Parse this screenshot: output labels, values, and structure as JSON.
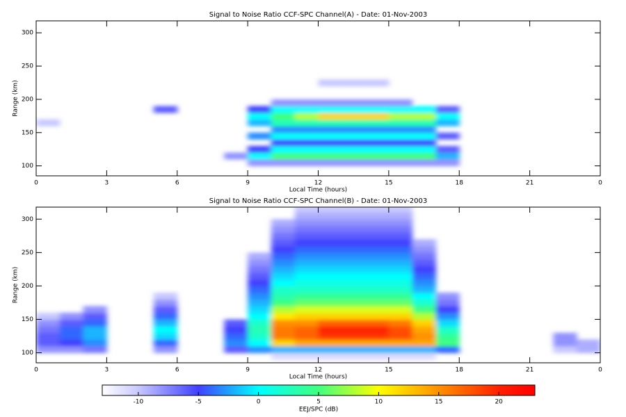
{
  "chart_data": [
    {
      "type": "heatmap",
      "title": "Signal to Noise Ratio CCF-SPC Channel(A) - Date: 01-Nov-2003",
      "xlabel": "Local Time (hours)",
      "ylabel": "Range (km)",
      "xlim": [
        0,
        24
      ],
      "ylim": [
        85,
        318
      ],
      "xticks": [
        0,
        3,
        6,
        9,
        12,
        15,
        18,
        21,
        {
          "value": 24,
          "label": "0"
        }
      ],
      "yticks": [
        100,
        150,
        200,
        250,
        300
      ],
      "xbins": [
        0,
        1,
        2,
        3,
        4,
        5,
        6,
        7,
        8,
        9,
        10,
        11,
        12,
        13,
        14,
        15,
        16,
        17,
        18,
        19,
        20,
        21,
        22,
        23,
        24
      ],
      "ybins": [
        90,
        100,
        110,
        120,
        130,
        140,
        150,
        160,
        170,
        180,
        190,
        200,
        210,
        220,
        230,
        240
      ],
      "z": [
        [
          null,
          null,
          null,
          null,
          null,
          null,
          null,
          null,
          null,
          null,
          null,
          null,
          null,
          null,
          null,
          null,
          null,
          null,
          null,
          null,
          null,
          null,
          null,
          null
        ],
        [
          null,
          null,
          null,
          null,
          null,
          null,
          null,
          null,
          null,
          -8,
          -8,
          -8,
          -8,
          -8,
          -8,
          -8,
          -8,
          -8,
          null,
          null,
          null,
          null,
          null,
          null
        ],
        [
          null,
          null,
          null,
          null,
          null,
          null,
          null,
          null,
          -8,
          0,
          5,
          5,
          5,
          5,
          5,
          5,
          5,
          -2,
          null,
          null,
          null,
          null,
          null,
          null
        ],
        [
          null,
          null,
          null,
          null,
          null,
          null,
          null,
          null,
          null,
          -5,
          0,
          0,
          0,
          0,
          0,
          0,
          0,
          -6,
          null,
          null,
          null,
          null,
          null,
          null
        ],
        [
          null,
          null,
          null,
          null,
          null,
          null,
          null,
          null,
          null,
          null,
          -5,
          -5,
          -5,
          -5,
          -5,
          -5,
          -5,
          null,
          null,
          null,
          null,
          null,
          null,
          null
        ],
        [
          null,
          null,
          null,
          null,
          null,
          null,
          null,
          null,
          null,
          -3,
          0,
          0,
          0,
          0,
          0,
          0,
          0,
          -6,
          null,
          null,
          null,
          null,
          null,
          null
        ],
        [
          null,
          null,
          null,
          null,
          null,
          null,
          null,
          null,
          null,
          null,
          -3,
          -3,
          -3,
          -3,
          -3,
          -3,
          -3,
          null,
          null,
          null,
          null,
          null,
          null,
          null
        ],
        [
          -10,
          null,
          null,
          null,
          null,
          null,
          null,
          null,
          null,
          -2,
          3,
          3,
          3,
          3,
          3,
          3,
          3,
          -2,
          null,
          null,
          null,
          null,
          null,
          null
        ],
        [
          null,
          null,
          null,
          null,
          null,
          null,
          null,
          null,
          null,
          0,
          5,
          8,
          12,
          12,
          12,
          8,
          8,
          0,
          null,
          null,
          null,
          null,
          null,
          null
        ],
        [
          null,
          null,
          null,
          null,
          null,
          -6,
          null,
          null,
          null,
          -5,
          0,
          0,
          0,
          0,
          0,
          0,
          0,
          -6,
          null,
          null,
          null,
          null,
          null,
          null
        ],
        [
          null,
          null,
          null,
          null,
          null,
          null,
          null,
          null,
          null,
          null,
          -8,
          -8,
          -8,
          -8,
          -8,
          -8,
          null,
          null,
          null,
          null,
          null,
          null,
          null,
          null
        ],
        [
          null,
          null,
          null,
          null,
          null,
          null,
          null,
          null,
          null,
          null,
          null,
          null,
          null,
          null,
          null,
          null,
          null,
          null,
          null,
          null,
          null,
          null,
          null,
          null
        ],
        [
          null,
          null,
          null,
          null,
          null,
          null,
          null,
          null,
          null,
          null,
          null,
          null,
          null,
          null,
          null,
          null,
          null,
          null,
          null,
          null,
          null,
          null,
          null,
          null
        ],
        [
          null,
          null,
          null,
          null,
          null,
          null,
          null,
          null,
          null,
          null,
          null,
          null,
          -10,
          -10,
          -10,
          null,
          null,
          null,
          null,
          null,
          null,
          null,
          null,
          null
        ],
        [
          null,
          null,
          null,
          null,
          null,
          null,
          null,
          null,
          null,
          null,
          null,
          null,
          null,
          null,
          null,
          null,
          null,
          null,
          null,
          null,
          null,
          null,
          null,
          null
        ]
      ]
    },
    {
      "type": "heatmap",
      "title": "Signal to Noise Ratio CCF-SPC Channel(B) - Date: 01-Nov-2003",
      "xlabel": "Local Time (hours)",
      "ylabel": "Range (km)",
      "xlim": [
        0,
        24
      ],
      "ylim": [
        85,
        318
      ],
      "xticks": [
        0,
        3,
        6,
        9,
        12,
        15,
        18,
        21,
        {
          "value": 24,
          "label": "0"
        }
      ],
      "yticks": [
        100,
        150,
        200,
        250,
        300
      ],
      "xbins": [
        0,
        1,
        2,
        3,
        4,
        5,
        6,
        7,
        8,
        9,
        10,
        11,
        12,
        13,
        14,
        15,
        16,
        17,
        18,
        19,
        20,
        21,
        22,
        23,
        24
      ],
      "ybins": [
        90,
        100,
        110,
        120,
        130,
        140,
        150,
        160,
        170,
        180,
        190,
        200,
        210,
        220,
        230,
        240,
        250,
        260,
        270,
        280,
        290,
        300,
        310,
        320
      ],
      "z": [
        [
          null,
          null,
          null,
          null,
          null,
          null,
          null,
          null,
          null,
          null,
          -11,
          -11,
          -11,
          -11,
          -11,
          -11,
          -11,
          null,
          null,
          null,
          null,
          null,
          null,
          null
        ],
        [
          -8,
          -8,
          -7,
          null,
          null,
          -8,
          null,
          null,
          -6,
          -3,
          -2,
          -2,
          -2,
          -2,
          -2,
          -2,
          -2,
          -4,
          null,
          null,
          null,
          null,
          -10,
          -9
        ],
        [
          -6,
          -5,
          -3,
          null,
          null,
          -4,
          null,
          null,
          -3,
          0,
          12,
          14,
          14,
          14,
          14,
          14,
          14,
          5,
          null,
          null,
          null,
          null,
          -8,
          -9
        ],
        [
          -6,
          -4,
          -2,
          null,
          null,
          -1,
          null,
          null,
          -4,
          2,
          16,
          17,
          19,
          19,
          19,
          18,
          15,
          4,
          null,
          null,
          null,
          null,
          -8,
          null
        ],
        [
          -7,
          -4,
          -2,
          null,
          null,
          0,
          null,
          null,
          -5,
          3,
          16,
          17,
          20,
          20,
          20,
          18,
          14,
          2,
          null,
          null,
          null,
          null,
          null,
          null
        ],
        [
          -8,
          -6,
          -4,
          null,
          null,
          -2,
          null,
          null,
          -6,
          2,
          15,
          15,
          17,
          17,
          17,
          16,
          12,
          -1,
          null,
          null,
          null,
          null,
          null,
          null
        ],
        [
          -10,
          -8,
          -6,
          null,
          null,
          -4,
          null,
          null,
          null,
          0,
          11,
          12,
          12,
          12,
          12,
          12,
          8,
          -3,
          null,
          null,
          null,
          null,
          null,
          null
        ],
        [
          null,
          null,
          -8,
          null,
          null,
          -6,
          null,
          null,
          null,
          -1,
          8,
          9,
          9,
          9,
          9,
          9,
          5,
          -5,
          null,
          null,
          null,
          null,
          null,
          null
        ],
        [
          null,
          null,
          null,
          null,
          null,
          -8,
          null,
          null,
          null,
          -2,
          5,
          6,
          6,
          6,
          6,
          6,
          2,
          -7,
          null,
          null,
          null,
          null,
          null,
          null
        ],
        [
          null,
          null,
          null,
          null,
          null,
          -10,
          null,
          null,
          null,
          -3,
          3,
          4,
          4,
          4,
          4,
          4,
          0,
          -8,
          null,
          null,
          null,
          null,
          null,
          null
        ],
        [
          null,
          null,
          null,
          null,
          null,
          null,
          null,
          null,
          null,
          -4,
          2,
          2,
          2,
          2,
          2,
          2,
          -2,
          null,
          null,
          null,
          null,
          null,
          null,
          null
        ],
        [
          null,
          null,
          null,
          null,
          null,
          null,
          null,
          null,
          null,
          -5,
          0,
          1,
          1,
          1,
          1,
          1,
          -3,
          null,
          null,
          null,
          null,
          null,
          null,
          null
        ],
        [
          null,
          null,
          null,
          null,
          null,
          null,
          null,
          null,
          null,
          -6,
          -1,
          0,
          0,
          0,
          0,
          0,
          -4,
          null,
          null,
          null,
          null,
          null,
          null,
          null
        ],
        [
          null,
          null,
          null,
          null,
          null,
          null,
          null,
          null,
          null,
          -7,
          -2,
          -1,
          -1,
          -1,
          -1,
          -1,
          -5,
          null,
          null,
          null,
          null,
          null,
          null,
          null
        ],
        [
          null,
          null,
          null,
          null,
          null,
          null,
          null,
          null,
          null,
          -8,
          -3,
          -2,
          -2,
          -2,
          -2,
          -2,
          -6,
          null,
          null,
          null,
          null,
          null,
          null,
          null
        ],
        [
          null,
          null,
          null,
          null,
          null,
          null,
          null,
          null,
          null,
          -9,
          -4,
          -3,
          -3,
          -3,
          -3,
          -3,
          -7,
          null,
          null,
          null,
          null,
          null,
          null,
          null
        ],
        [
          null,
          null,
          null,
          null,
          null,
          null,
          null,
          null,
          null,
          null,
          -5,
          -4,
          -4,
          -4,
          -4,
          -4,
          -8,
          null,
          null,
          null,
          null,
          null,
          null,
          null
        ],
        [
          null,
          null,
          null,
          null,
          null,
          null,
          null,
          null,
          null,
          null,
          -6,
          -5,
          -5,
          -5,
          -5,
          -5,
          -9,
          null,
          null,
          null,
          null,
          null,
          null,
          null
        ],
        [
          null,
          null,
          null,
          null,
          null,
          null,
          null,
          null,
          null,
          null,
          -7,
          -6,
          -6,
          -6,
          -6,
          -6,
          null,
          null,
          null,
          null,
          null,
          null,
          null,
          null
        ],
        [
          null,
          null,
          null,
          null,
          null,
          null,
          null,
          null,
          null,
          null,
          -8,
          -7,
          -7,
          -7,
          -7,
          -7,
          null,
          null,
          null,
          null,
          null,
          null,
          null,
          null
        ],
        [
          null,
          null,
          null,
          null,
          null,
          null,
          null,
          null,
          null,
          null,
          -9,
          -8,
          -8,
          -8,
          -8,
          -8,
          null,
          null,
          null,
          null,
          null,
          null,
          null,
          null
        ],
        [
          null,
          null,
          null,
          null,
          null,
          null,
          null,
          null,
          null,
          null,
          null,
          -9,
          -9,
          -9,
          -9,
          -9,
          null,
          null,
          null,
          null,
          null,
          null,
          null,
          null
        ],
        [
          null,
          null,
          null,
          null,
          null,
          null,
          null,
          null,
          null,
          null,
          null,
          -10,
          -10,
          -10,
          -10,
          -10,
          null,
          null,
          null,
          null,
          null,
          null,
          null,
          null
        ]
      ]
    },
    {
      "type": "colorbar",
      "label": "EEJ/SPC (dB)",
      "lim": [
        -13,
        23
      ],
      "ticks": [
        -10,
        -5,
        0,
        5,
        10,
        15,
        20
      ],
      "colorscale": [
        [
          -13,
          "#ffffff"
        ],
        [
          -10,
          "#c8c8ff"
        ],
        [
          -5,
          "#4040ff"
        ],
        [
          0,
          "#00ffff"
        ],
        [
          5,
          "#40ff80"
        ],
        [
          10,
          "#ffff00"
        ],
        [
          15,
          "#ff9000"
        ],
        [
          20,
          "#ff2000"
        ],
        [
          23,
          "#ff0000"
        ]
      ]
    }
  ]
}
